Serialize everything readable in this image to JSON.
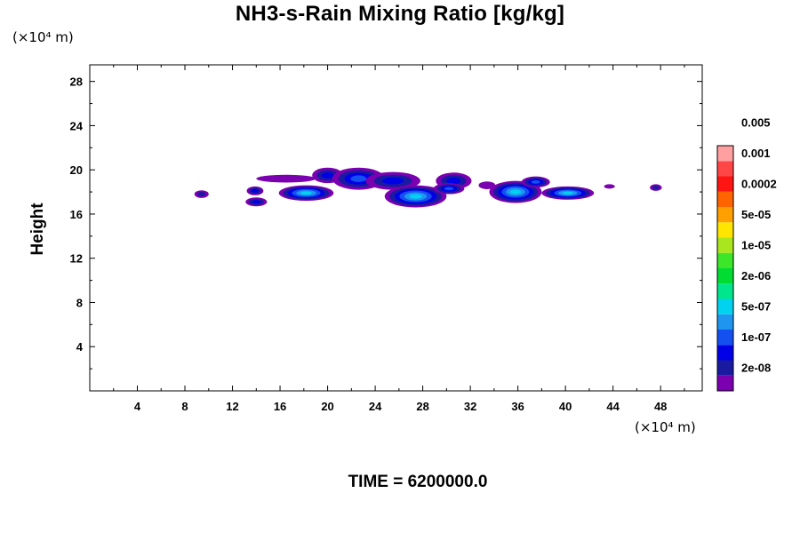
{
  "chart_data": {
    "type": "heatmap",
    "title": "NH3-s-Rain Mixing Ratio [kg/kg]",
    "ylabel": "Height",
    "xlabel": "",
    "x_unit": "(×10⁴ m)",
    "y_unit": "(×10⁴ m)",
    "footer": "TIME = 6200000.0",
    "xlim": [
      0,
      51.5
    ],
    "ylim": [
      0,
      29.5
    ],
    "x_ticks": [
      4,
      8,
      12,
      16,
      20,
      24,
      28,
      32,
      36,
      40,
      44,
      48
    ],
    "y_ticks": [
      4,
      8,
      12,
      16,
      20,
      24,
      28
    ],
    "colorbar": {
      "colors": [
        "#7a00b0",
        "#1a1aa0",
        "#0000e6",
        "#1450f0",
        "#1e96f0",
        "#00d2f0",
        "#00e68c",
        "#00dc32",
        "#3ce628",
        "#aae61e",
        "#ffe600",
        "#ffa000",
        "#ff6400",
        "#ff1414",
        "#ff4646",
        "#ffa0a0"
      ],
      "labels": [
        "2e-08",
        "1e-07",
        "5e-07",
        "2e-06",
        "1e-05",
        "5e-05",
        "0.0002",
        "0.001",
        "0.005"
      ]
    },
    "blobs": [
      {
        "x": 9.4,
        "y": 17.8,
        "w": 1.2,
        "h": 0.7,
        "level": 1
      },
      {
        "x": 13.9,
        "y": 18.1,
        "w": 1.4,
        "h": 0.8,
        "level": 2
      },
      {
        "x": 14.0,
        "y": 17.1,
        "w": 1.8,
        "h": 0.8,
        "level": 2
      },
      {
        "x": 18.2,
        "y": 17.9,
        "w": 4.6,
        "h": 1.4,
        "level": 5
      },
      {
        "x": 16.5,
        "y": 19.2,
        "w": 5.0,
        "h": 0.7,
        "level": 0
      },
      {
        "x": 20.0,
        "y": 19.5,
        "w": 2.6,
        "h": 1.4,
        "level": 2
      },
      {
        "x": 22.6,
        "y": 19.2,
        "w": 4.4,
        "h": 2.0,
        "level": 3
      },
      {
        "x": 25.5,
        "y": 19.0,
        "w": 4.6,
        "h": 1.6,
        "level": 2
      },
      {
        "x": 27.4,
        "y": 17.6,
        "w": 5.2,
        "h": 2.0,
        "level": 5
      },
      {
        "x": 30.6,
        "y": 19.0,
        "w": 3.0,
        "h": 1.5,
        "level": 2
      },
      {
        "x": 30.2,
        "y": 18.3,
        "w": 2.6,
        "h": 1.0,
        "level": 3
      },
      {
        "x": 33.4,
        "y": 18.6,
        "w": 1.4,
        "h": 0.7,
        "level": 0
      },
      {
        "x": 35.8,
        "y": 18.0,
        "w": 4.4,
        "h": 2.0,
        "level": 5
      },
      {
        "x": 37.5,
        "y": 18.9,
        "w": 2.4,
        "h": 1.0,
        "level": 3
      },
      {
        "x": 40.2,
        "y": 17.9,
        "w": 4.4,
        "h": 1.2,
        "level": 5
      },
      {
        "x": 43.7,
        "y": 18.5,
        "w": 0.9,
        "h": 0.4,
        "level": 0
      },
      {
        "x": 47.6,
        "y": 18.4,
        "w": 1.0,
        "h": 0.6,
        "level": 1
      }
    ]
  }
}
